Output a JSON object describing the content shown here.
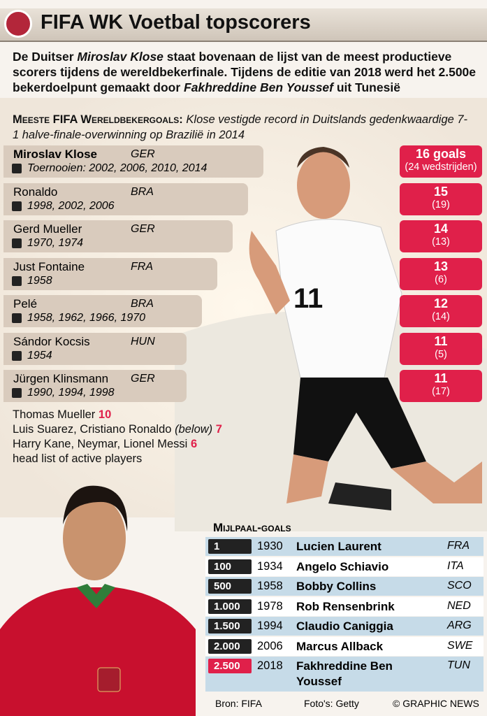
{
  "header": {
    "title": "FIFA WK Voetbal topscorers"
  },
  "intro": [
    {
      "text": "De Duitser ",
      "italic": false
    },
    {
      "text": "Miroslav Klose",
      "italic": true
    },
    {
      "text": " staat bovenaan de lijst van de meest productieve scorers tijdens de wereldbekerfinale. Tijdens de editie van 2018 werd het 2.500e bekerdoelpunt gemaakt door ",
      "italic": false
    },
    {
      "text": "Fakhreddine Ben Youssef",
      "italic": true
    },
    {
      "text": " uit Tunesië",
      "italic": false
    }
  ],
  "section": {
    "heading": "Meeste FIFA Wereldbekergoals:",
    "subtitle": "Klose vestigde record in Duitslands gedenkwaardige 7-1 halve-finale-overwinning op Brazilië in 2014"
  },
  "players": [
    {
      "name": "Miroslav Klose",
      "country": "GER",
      "years": "Toernooien: 2002, 2006, 2010, 2014",
      "goals": 16,
      "goals_label": "16 goals",
      "matches": 24,
      "matches_label": "(24 wedstrijden)"
    },
    {
      "name": "Ronaldo",
      "country": "BRA",
      "years": "1998, 2002, 2006",
      "goals": 15,
      "matches": 19,
      "matches_label": "(19)"
    },
    {
      "name": "Gerd Mueller",
      "country": "GER",
      "years": "1970, 1974",
      "goals": 14,
      "matches": 13,
      "matches_label": "(13)"
    },
    {
      "name": "Just Fontaine",
      "country": "FRA",
      "years": "1958",
      "goals": 13,
      "matches": 6,
      "matches_label": "(6)"
    },
    {
      "name": "Pelé",
      "country": "BRA",
      "years": "1958, 1962, 1966, 1970",
      "goals": 12,
      "matches": 14,
      "matches_label": "(14)"
    },
    {
      "name": "Sándor Kocsis",
      "country": "HUN",
      "years": "1954",
      "goals": 11,
      "matches": 5,
      "matches_label": "(5)"
    },
    {
      "name": "Jürgen Klinsmann",
      "country": "GER",
      "years": "1990, 1994, 1998",
      "goals": 11,
      "matches": 17,
      "matches_label": "(17)"
    }
  ],
  "active": {
    "rows": [
      {
        "text": "Thomas Mueller",
        "goals": 10
      },
      {
        "text": "Luis Suarez, Cristiano Ronaldo",
        "note": "(below)",
        "goals": 7
      },
      {
        "text": "Harry Kane, Neymar, Lionel Messi",
        "goals": 6
      }
    ],
    "caption": "head list of active players"
  },
  "milestones": {
    "heading": "Mijlpaal-goals",
    "rows": [
      {
        "goal": "1",
        "year": 1930,
        "name": "Lucien Laurent",
        "country": "FRA"
      },
      {
        "goal": "100",
        "year": 1934,
        "name": "Angelo Schiavio",
        "country": "ITA"
      },
      {
        "goal": "500",
        "year": 1958,
        "name": "Bobby Collins",
        "country": "SCO"
      },
      {
        "goal": "1.000",
        "year": 1978,
        "name": "Rob Rensenbrink",
        "country": "NED"
      },
      {
        "goal": "1.500",
        "year": 1994,
        "name": "Claudio Caniggia",
        "country": "ARG"
      },
      {
        "goal": "2.000",
        "year": 2006,
        "name": "Marcus Allback",
        "country": "SWE"
      },
      {
        "goal": "2.500",
        "year": 2018,
        "name": "Fakhreddine Ben Youssef",
        "country": "TUN"
      }
    ]
  },
  "footer": {
    "source": "Bron: FIFA",
    "photos": "Foto's: Getty",
    "credit": "© GRAPHIC NEWS"
  }
}
